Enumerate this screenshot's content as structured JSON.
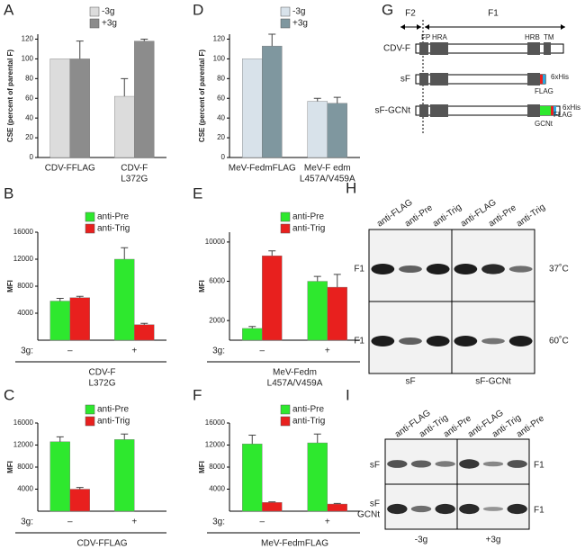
{
  "chart_data": [
    {
      "type": "bar",
      "panel": "A",
      "ylabel": "CSE (percent of parental F)",
      "categories": [
        [
          "CDV-FFLAG"
        ],
        [
          "CDV-F",
          "L372G"
        ]
      ],
      "series": [
        {
          "name": "-3g",
          "color": "#dcdcdc",
          "values": [
            100,
            62
          ],
          "errors": [
            0,
            18
          ]
        },
        {
          "name": "+3g",
          "color": "#8c8c8c",
          "values": [
            100,
            118
          ],
          "errors": [
            18,
            2
          ]
        }
      ],
      "ylim": [
        0,
        125
      ],
      "yticks": [
        0,
        20,
        40,
        60,
        80,
        100,
        120
      ]
    },
    {
      "type": "bar",
      "panel": "D",
      "ylabel": "CSE (percent of parental F)",
      "categories": [
        [
          "MeV-FedmFLAG"
        ],
        [
          "MeV-F edm",
          "L457A/V459A"
        ]
      ],
      "series": [
        {
          "name": "-3g",
          "color": "#d8e2ea",
          "values": [
            100,
            57
          ],
          "errors": [
            0,
            3
          ]
        },
        {
          "name": "+3g",
          "color": "#7f979f",
          "values": [
            113,
            55
          ],
          "errors": [
            12,
            6
          ]
        }
      ],
      "ylim": [
        0,
        125
      ],
      "yticks": [
        0,
        20,
        40,
        60,
        80,
        100,
        120
      ]
    },
    {
      "type": "bar",
      "panel": "B",
      "ylabel": "MFI",
      "xlabel": "3g:",
      "categories": [
        [
          "–"
        ],
        [
          "+"
        ]
      ],
      "group_label": [
        "CDV-F",
        "L372G"
      ],
      "series": [
        {
          "name": "anti-Pre",
          "color": "#2ee82e",
          "values": [
            5800,
            12000
          ],
          "errors": [
            400,
            1700
          ]
        },
        {
          "name": "anti-Trig",
          "color": "#e8201e",
          "values": [
            6300,
            2300
          ],
          "errors": [
            200,
            200
          ]
        }
      ],
      "ylim": [
        0,
        16000
      ],
      "yticks": [
        4000,
        8000,
        12000,
        16000
      ]
    },
    {
      "type": "bar",
      "panel": "E",
      "ylabel": "MFI",
      "xlabel": "3g:",
      "categories": [
        [
          "–"
        ],
        [
          "+"
        ]
      ],
      "group_label": [
        "MeV-Fedm",
        "L457A/V459A"
      ],
      "series": [
        {
          "name": "anti-Pre",
          "color": "#2ee82e",
          "values": [
            1200,
            6000
          ],
          "errors": [
            200,
            500
          ]
        },
        {
          "name": "anti-Trig",
          "color": "#e8201e",
          "values": [
            8600,
            5400
          ],
          "errors": [
            500,
            1300
          ]
        }
      ],
      "ylim": [
        0,
        11000
      ],
      "yticks": [
        2000,
        6000,
        10000
      ]
    },
    {
      "type": "bar",
      "panel": "C",
      "ylabel": "MFI",
      "xlabel": "3g:",
      "categories": [
        [
          "–"
        ],
        [
          "+"
        ]
      ],
      "group_label": [
        "CDV-FFLAG"
      ],
      "series": [
        {
          "name": "anti-Pre",
          "color": "#2ee82e",
          "values": [
            12600,
            13000
          ],
          "errors": [
            900,
            1000
          ]
        },
        {
          "name": "anti-Trig",
          "color": "#e8201e",
          "values": [
            4000,
            null
          ],
          "errors": [
            300,
            null
          ]
        }
      ],
      "ylim": [
        0,
        16000
      ],
      "yticks": [
        4000,
        8000,
        12000,
        16000
      ]
    },
    {
      "type": "bar",
      "panel": "F",
      "ylabel": "MFI",
      "xlabel": "3g:",
      "categories": [
        [
          "–"
        ],
        [
          "+"
        ]
      ],
      "group_label": [
        "MeV-FedmFLAG"
      ],
      "series": [
        {
          "name": "anti-Pre",
          "color": "#2ee82e",
          "values": [
            12200,
            12400
          ],
          "errors": [
            1600,
            1600
          ]
        },
        {
          "name": "anti-Trig",
          "color": "#e8201e",
          "values": [
            1600,
            1300
          ],
          "errors": [
            100,
            100
          ]
        }
      ],
      "ylim": [
        0,
        16000
      ],
      "yticks": [
        4000,
        8000,
        12000,
        16000
      ]
    }
  ],
  "diagram": {
    "panel": "G",
    "regions": [
      "F2",
      "F1"
    ],
    "domains": [
      "FP",
      "HRA",
      "HRB",
      "TM"
    ],
    "rows": [
      "CDV-F",
      "sF",
      "sF-GCNt"
    ],
    "tags": [
      "6xHis",
      "FLAG",
      "GCNt",
      "FLAG",
      "6xHis"
    ]
  },
  "blot_h": {
    "panel": "H",
    "lanes": [
      "anti-FLAG",
      "anti-Pre",
      "anti-Trig",
      "anti-FLAG",
      "anti-Pre",
      "anti-Trig"
    ],
    "band": [
      "F1",
      "F1"
    ],
    "conditions": [
      "37˚C",
      "60˚C"
    ],
    "samples": [
      "sF",
      "sF-GCNt"
    ]
  },
  "blot_i": {
    "panel": "I",
    "lanes": [
      "anti-FLAG",
      "anti-Trig",
      "anti-Pre",
      "anti-FLAG",
      "anti-Trig",
      "anti-Pre"
    ],
    "samples": [
      "sF",
      "sF",
      "GCNt"
    ],
    "band": [
      "F1",
      "F1"
    ],
    "conditions": [
      "-3g",
      "+3g"
    ]
  }
}
